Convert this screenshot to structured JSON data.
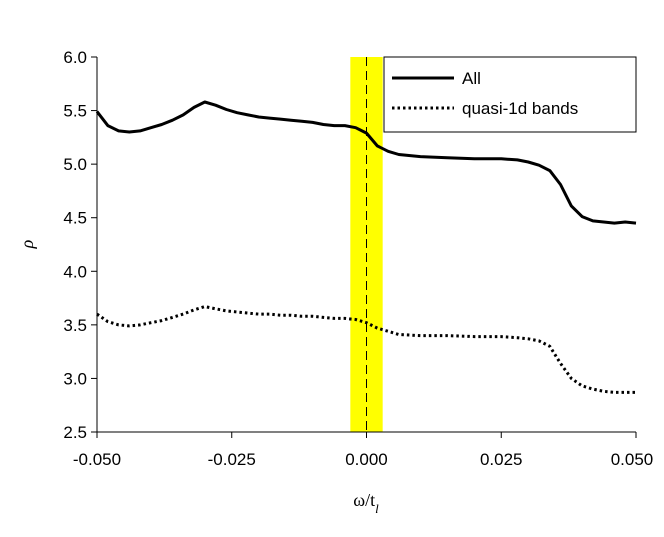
{
  "chart_data": {
    "type": "line",
    "xlabel": "ω/t",
    "xlabel_subscript": "l",
    "ylabel": "ρ",
    "xlim": [
      -0.05,
      0.05
    ],
    "ylim": [
      2.5,
      6.0
    ],
    "xticks": [
      "-0.050",
      "-0.025",
      "0.000",
      "0.025",
      "0.050"
    ],
    "yticks": [
      "2.5",
      "3.0",
      "3.5",
      "4.0",
      "4.5",
      "5.0",
      "5.5",
      "6.0"
    ],
    "grid": false,
    "legend_position": "top-right",
    "highlight_band": {
      "x_range": [
        -0.003,
        0.003
      ],
      "color": "#ffff00"
    },
    "reference_line": {
      "x": 0.0,
      "style": "dashed"
    },
    "series": [
      {
        "name": "All",
        "style": "solid",
        "x": [
          -0.05,
          -0.048,
          -0.046,
          -0.044,
          -0.042,
          -0.04,
          -0.038,
          -0.036,
          -0.034,
          -0.032,
          -0.03,
          -0.028,
          -0.026,
          -0.024,
          -0.022,
          -0.02,
          -0.018,
          -0.016,
          -0.014,
          -0.012,
          -0.01,
          -0.008,
          -0.006,
          -0.004,
          -0.002,
          0.0,
          0.002,
          0.004,
          0.006,
          0.01,
          0.015,
          0.02,
          0.025,
          0.028,
          0.03,
          0.032,
          0.034,
          0.036,
          0.038,
          0.04,
          0.042,
          0.044,
          0.046,
          0.048,
          0.05
        ],
        "y": [
          5.49,
          5.36,
          5.31,
          5.3,
          5.31,
          5.34,
          5.37,
          5.41,
          5.46,
          5.53,
          5.58,
          5.55,
          5.51,
          5.48,
          5.46,
          5.44,
          5.43,
          5.42,
          5.41,
          5.4,
          5.39,
          5.37,
          5.36,
          5.36,
          5.34,
          5.29,
          5.17,
          5.12,
          5.09,
          5.07,
          5.06,
          5.05,
          5.05,
          5.04,
          5.02,
          4.99,
          4.94,
          4.81,
          4.61,
          4.51,
          4.47,
          4.46,
          4.45,
          4.46,
          4.45
        ]
      },
      {
        "name": "quasi-1d bands",
        "style": "dotted",
        "x": [
          -0.05,
          -0.048,
          -0.046,
          -0.044,
          -0.042,
          -0.04,
          -0.038,
          -0.036,
          -0.034,
          -0.032,
          -0.03,
          -0.028,
          -0.026,
          -0.024,
          -0.022,
          -0.02,
          -0.018,
          -0.016,
          -0.014,
          -0.012,
          -0.01,
          -0.008,
          -0.006,
          -0.004,
          -0.002,
          0.0,
          0.002,
          0.004,
          0.006,
          0.01,
          0.015,
          0.02,
          0.025,
          0.028,
          0.03,
          0.032,
          0.034,
          0.036,
          0.038,
          0.04,
          0.042,
          0.044,
          0.046,
          0.048,
          0.05
        ],
        "y": [
          3.6,
          3.53,
          3.5,
          3.49,
          3.5,
          3.52,
          3.54,
          3.57,
          3.6,
          3.64,
          3.67,
          3.65,
          3.63,
          3.62,
          3.61,
          3.6,
          3.6,
          3.59,
          3.59,
          3.58,
          3.58,
          3.57,
          3.56,
          3.56,
          3.55,
          3.52,
          3.47,
          3.44,
          3.41,
          3.4,
          3.4,
          3.39,
          3.39,
          3.38,
          3.37,
          3.35,
          3.3,
          3.14,
          3.0,
          2.93,
          2.9,
          2.88,
          2.87,
          2.87,
          2.87
        ]
      }
    ]
  }
}
